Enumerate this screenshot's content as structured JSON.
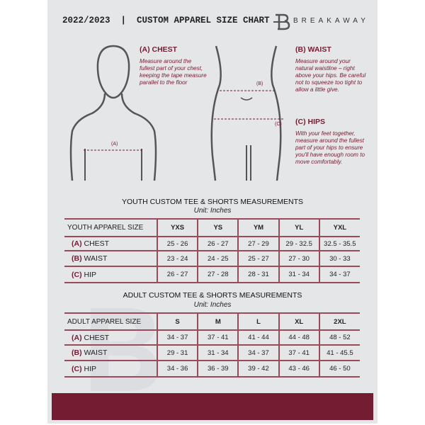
{
  "header": {
    "title": "2022/2023  |  CUSTOM APPAREL SIZE CHART",
    "brand": "BREAKAWAY",
    "watermark": "B"
  },
  "colors": {
    "accent": "#741c32",
    "background": "#e5e6e8"
  },
  "measures": {
    "chest": {
      "title": "(A) CHEST",
      "text": "Measure around the fullest part of your chest, keeping the tape measure parallel to the floor",
      "marker": "(A)"
    },
    "waist": {
      "title": "(B) WAIST",
      "text": "Measure around your natural waistline – right above your hips. Be careful not to squeeze too tight to allow a little give.",
      "marker": "(B)"
    },
    "hips": {
      "title": "(C) HIPS",
      "text": "With your feet together, measure around the fullest part of your hips to ensure you'll have enough room to move comfortably.",
      "marker": "(C)"
    }
  },
  "youth": {
    "title": "YOUTH CUSTOM TEE & SHORTS MEASUREMENTS",
    "unit": "Unit: Inches",
    "header": [
      "YOUTH APPAREL SIZE",
      "YXS",
      "YS",
      "YM",
      "YL",
      "YXL"
    ],
    "rows": [
      {
        "code": "(A)",
        "name": "CHEST",
        "values": [
          "25 - 26",
          "26 - 27",
          "27 - 29",
          "29 - 32.5",
          "32.5 - 35.5"
        ]
      },
      {
        "code": "(B)",
        "name": "WAIST",
        "values": [
          "23 - 24",
          "24 - 25",
          "25 - 27",
          "27 - 30",
          "30 - 33"
        ]
      },
      {
        "code": "(C)",
        "name": "HIP",
        "values": [
          "26 - 27",
          "27 - 28",
          "28 - 31",
          "31 - 34",
          "34 - 37"
        ]
      }
    ]
  },
  "adult": {
    "title": "ADULT CUSTOM TEE & SHORTS MEASUREMENTS",
    "unit": "Unit: Inches",
    "header": [
      "ADULT APPAREL SIZE",
      "S",
      "M",
      "L",
      "XL",
      "2XL"
    ],
    "rows": [
      {
        "code": "(A)",
        "name": "CHEST",
        "values": [
          "34 - 37",
          "37 - 41",
          "41 - 44",
          "44 - 48",
          "48 - 52"
        ]
      },
      {
        "code": "(B)",
        "name": "WAIST",
        "values": [
          "29 - 31",
          "31 - 34",
          "34 - 37",
          "37 - 41",
          "41 - 45.5"
        ]
      },
      {
        "code": "(C)",
        "name": "HIP",
        "values": [
          "34 - 36",
          "36 - 39",
          "39 - 42",
          "43 - 46",
          "46 - 50"
        ]
      }
    ]
  }
}
